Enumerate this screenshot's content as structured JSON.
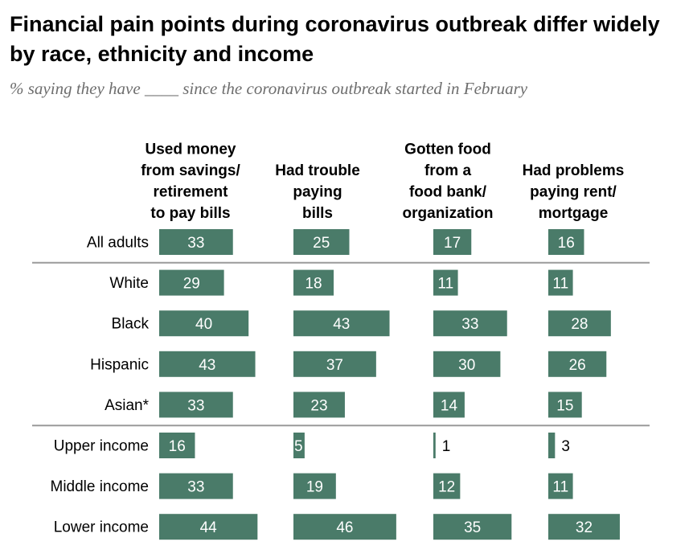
{
  "title": "Financial pain points during coronavirus outbreak differ widely by race, ethnicity and income",
  "subtitle": "% saying they have ____ since the coronavirus outbreak started in February",
  "colors": {
    "bar": "#4a7b69",
    "label_inside": "#ffffff",
    "label_outside": "#000000",
    "divider": "#9a9a9a"
  },
  "chart_data": {
    "type": "bar",
    "orientation": "horizontal",
    "layout": "small-multiples",
    "categories": [
      "All adults",
      "White",
      "Black",
      "Hispanic",
      "Asian*",
      "Upper income",
      "Middle income",
      "Lower income"
    ],
    "series": [
      {
        "name": "Used money from savings/ retirement to pay bills",
        "header_lines": [
          "Used money",
          "from savings/",
          "retirement",
          "to pay bills"
        ],
        "values": [
          33,
          29,
          40,
          43,
          33,
          16,
          33,
          44
        ]
      },
      {
        "name": "Had trouble paying bills",
        "header_lines": [
          "Had trouble",
          "paying",
          "bills"
        ],
        "values": [
          25,
          18,
          43,
          37,
          23,
          5,
          19,
          46
        ]
      },
      {
        "name": "Gotten food from a food bank/ organization",
        "header_lines": [
          "Gotten food",
          "from a",
          "food bank/",
          "organization"
        ],
        "values": [
          17,
          11,
          33,
          30,
          14,
          1,
          12,
          35
        ]
      },
      {
        "name": "Had problems paying rent/ mortgage",
        "header_lines": [
          "Had problems",
          "paying rent/",
          "mortgage"
        ],
        "values": [
          16,
          11,
          28,
          26,
          15,
          3,
          11,
          32
        ]
      }
    ],
    "dividers_after_categories": [
      "All adults",
      "Asian*"
    ],
    "xlim": [
      0,
      50
    ],
    "axis_labels_shown": false,
    "grid": false
  }
}
